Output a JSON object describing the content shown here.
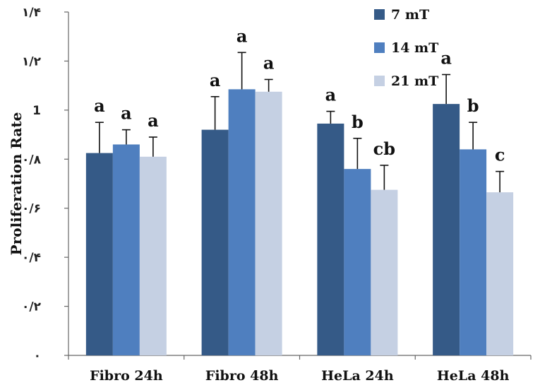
{
  "chart_data": {
    "type": "bar",
    "categories": [
      "Fibro 24h",
      "Fibro 48h",
      "HeLa 24h",
      "HeLa 48h"
    ],
    "ylabel": "Proliferation Rate",
    "xlabel": "",
    "ylim": [
      0,
      1.4
    ],
    "yticks": [
      {
        "value": 0,
        "label": "۰"
      },
      {
        "value": 0.2,
        "label": "۰/۲"
      },
      {
        "value": 0.4,
        "label": "۰/۴"
      },
      {
        "value": 0.6,
        "label": "۰/۶"
      },
      {
        "value": 0.8,
        "label": "۰/۸"
      },
      {
        "value": 1.0,
        "label": "1"
      },
      {
        "value": 1.2,
        "label": "۱/۲"
      },
      {
        "value": 1.4,
        "label": "۱/۴"
      }
    ],
    "grid": false,
    "legend_position": "top-right",
    "series": [
      {
        "name": "7 mT",
        "color": "#355A87",
        "values": [
          0.825,
          0.92,
          0.945,
          1.025
        ],
        "errors": [
          0.125,
          0.135,
          0.05,
          0.12
        ],
        "annotations": [
          "a",
          "a",
          "a",
          "a"
        ]
      },
      {
        "name": "14 mT",
        "color": "#4F7FBF",
        "values": [
          0.86,
          1.085,
          0.76,
          0.84
        ],
        "errors": [
          0.06,
          0.15,
          0.125,
          0.11
        ],
        "annotations": [
          "a",
          "a",
          "b",
          "b"
        ]
      },
      {
        "name": "21 mT",
        "color": "#C5D0E3",
        "values": [
          0.81,
          1.075,
          0.675,
          0.665
        ],
        "errors": [
          0.08,
          0.05,
          0.1,
          0.085
        ],
        "annotations": [
          "a",
          "a",
          "cb",
          "c"
        ]
      }
    ]
  }
}
